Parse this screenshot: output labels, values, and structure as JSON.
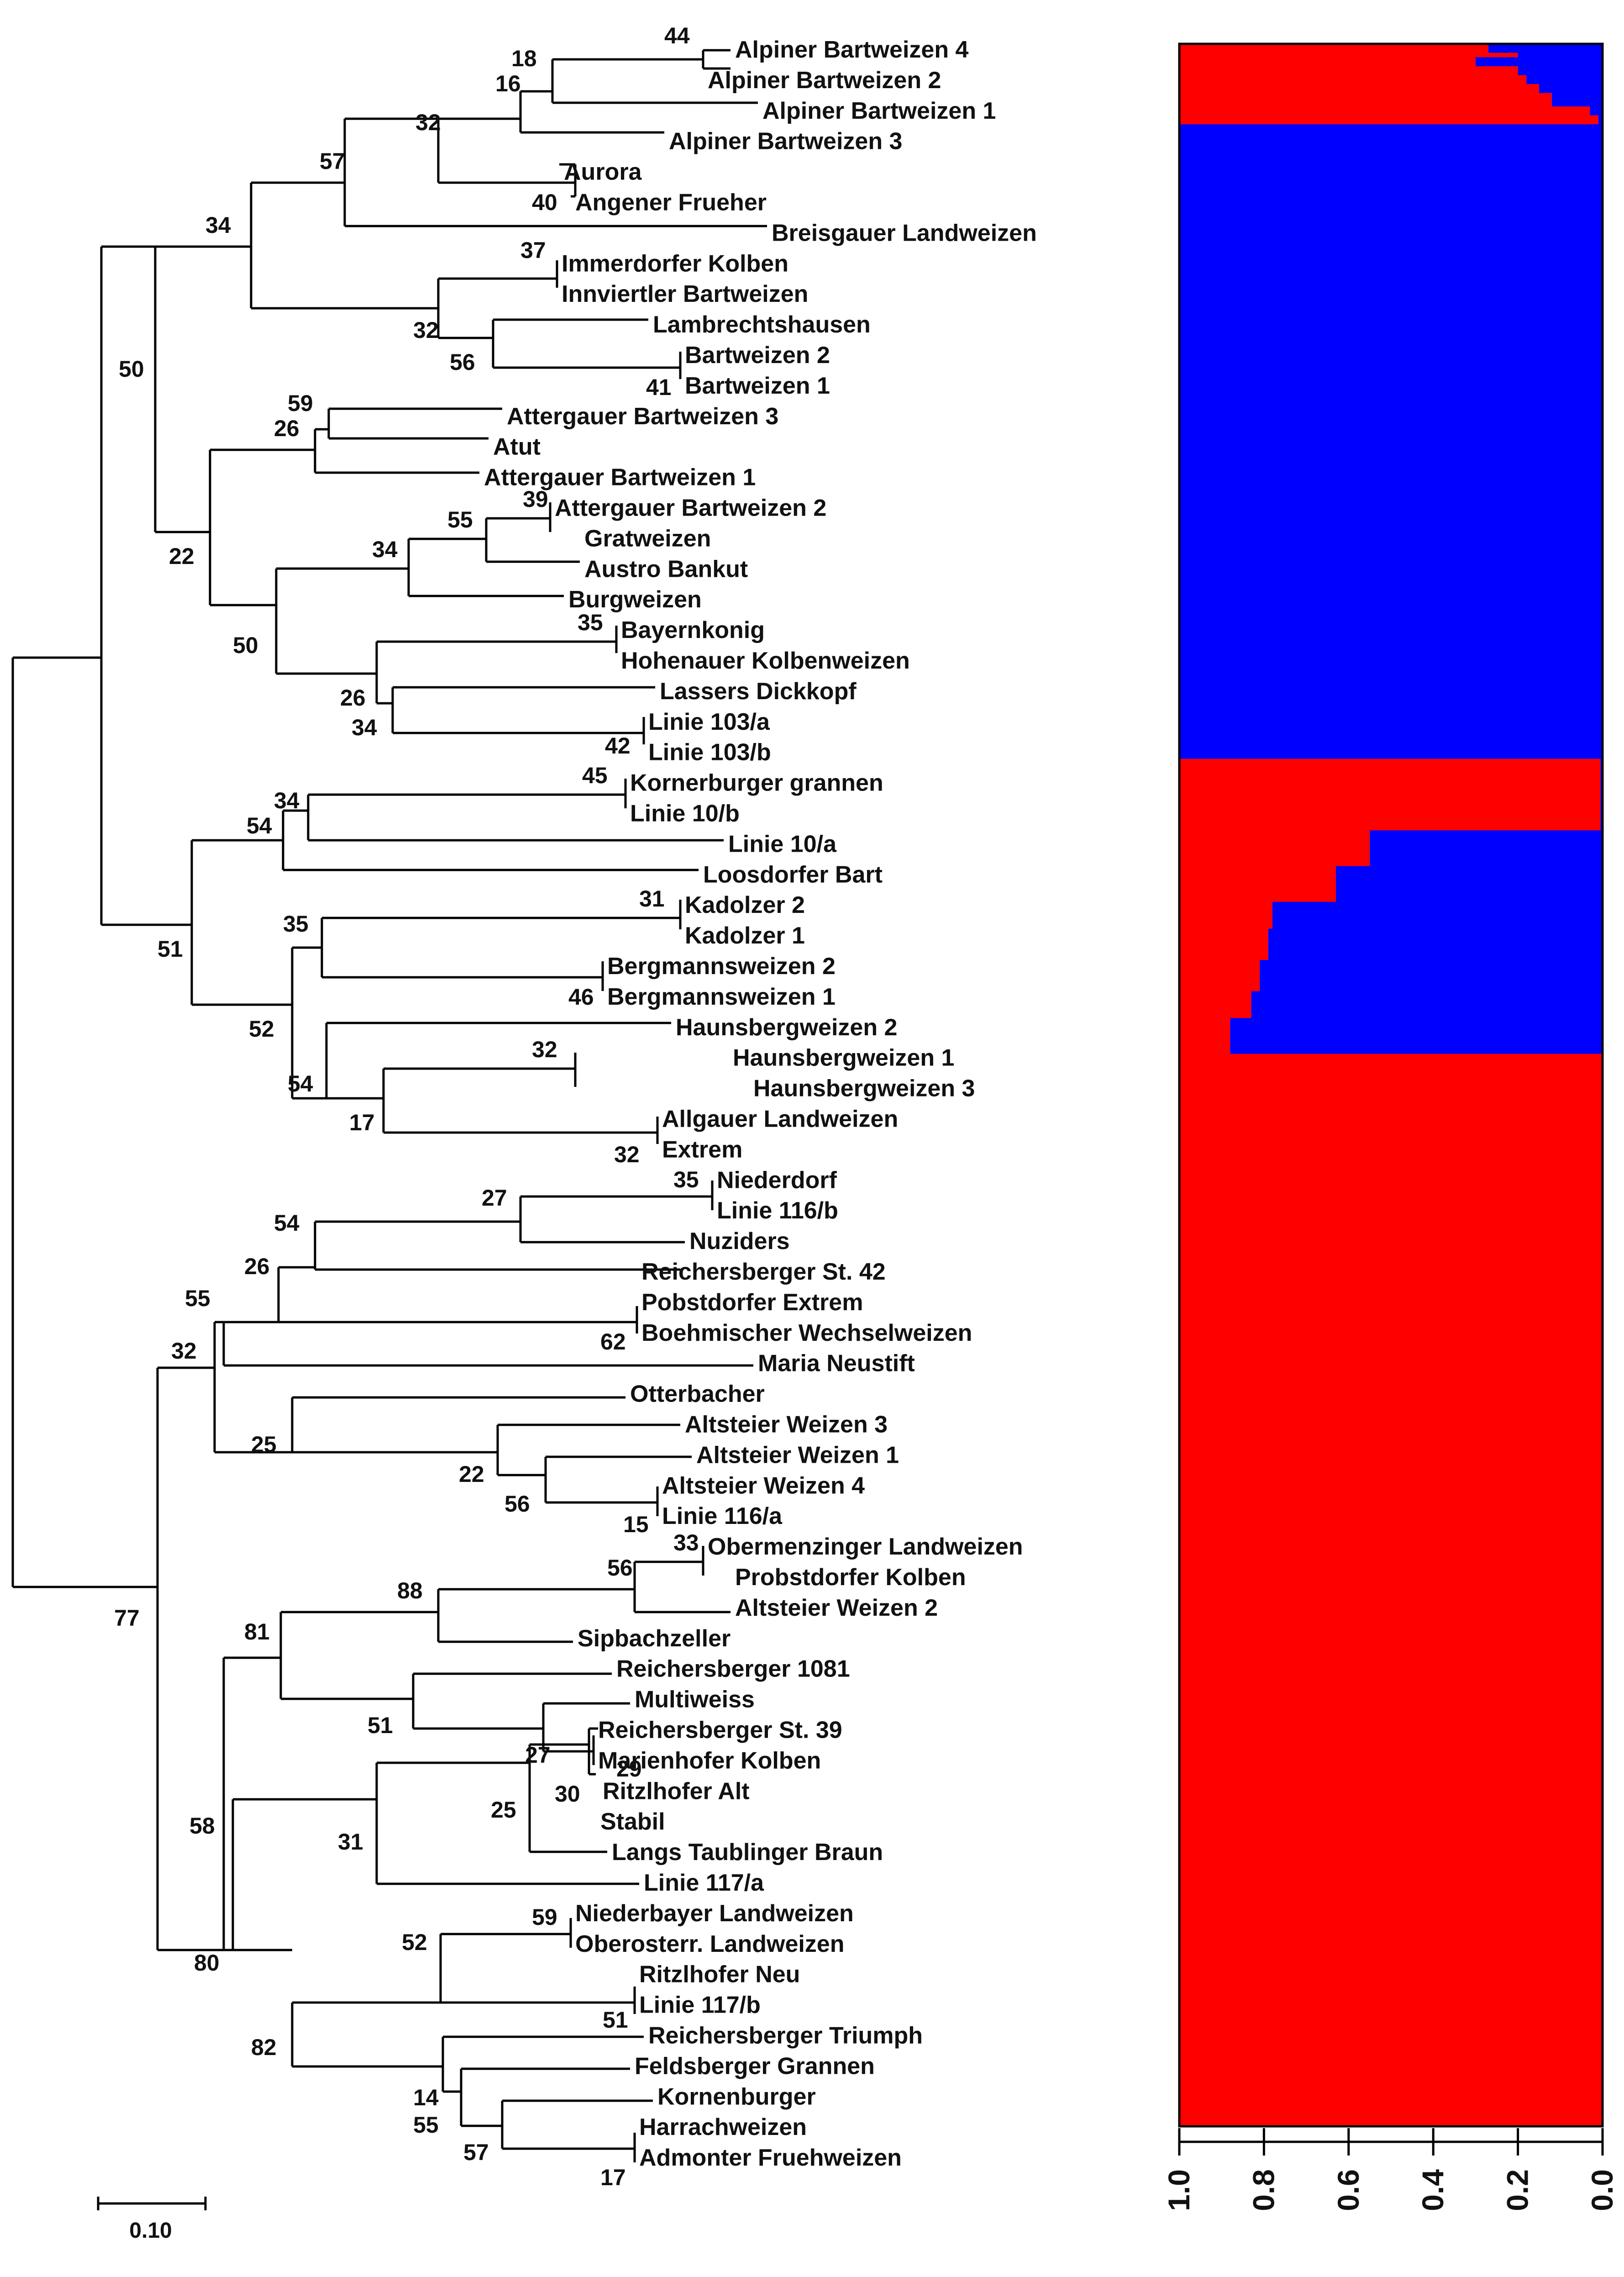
{
  "taxa": [
    "Alpiner Bartweizen 4",
    "Alpiner Bartweizen 2",
    "Alpiner Bartweizen 1",
    "Alpiner Bartweizen 3",
    "Aurora",
    "Angener Frueher",
    "Breisgauer Landweizen",
    "Immerdorfer Kolben",
    "Innviertler Bartweizen",
    "Lambrechtshausen",
    "Bartweizen 2",
    "Bartweizen 1",
    "Attergauer Bartweizen 3",
    "Atut",
    "Attergauer Bartweizen 1",
    "Attergauer Bartweizen 2",
    "Gratweizen",
    "Austro Bankut",
    "Burgweizen",
    "Bayernkonig",
    "Hohenauer Kolbenweizen",
    "Lassers Dickkopf",
    "Linie 103/a",
    "Linie 103/b",
    "Kornerburger grannen",
    "Linie 10/b",
    "Linie 10/a",
    "Loosdorfer Bart",
    "Kadolzer 2",
    "Kadolzer 1",
    "Bergmannsweizen 2",
    "Bergmannsweizen 1",
    "Haunsbergweizen 2",
    "Haunsbergweizen 1",
    "Haunsbergweizen 3",
    "Allgauer Landweizen",
    "Extrem",
    "Niederdorf",
    "Linie 116/b",
    "Nuziders",
    "Reichersberger St. 42",
    "Pobstdorfer Extrem",
    "Boehmischer Wechselweizen",
    "Maria Neustift",
    "Otterbacher",
    "Altsteier Weizen 3",
    "Altsteier Weizen 1",
    "Altsteier Weizen 4",
    "Linie 116/a",
    "Obermenzinger Landweizen",
    "Probstdorfer Kolben",
    "Altsteier Weizen 2",
    "Sipbachzeller",
    "Reichersberger 1081",
    "Multiweiss",
    "Reichersberger St. 39",
    "Marienhofer Kolben",
    "Ritzlhofer Alt",
    "Stabil",
    "Langs Taublinger Braun",
    "Linie 117/a",
    "Niederbayer Landweizen",
    "Oberosterr. Landweizen",
    "Ritzlhofer Neu",
    "Linie 117/b",
    "Reichersberger Triumph",
    "Feldsberger Grannen",
    "Kornenburger",
    "Harrachweizen",
    "Admonter Fruehweizen"
  ],
  "bootstrap_values": [
    "44",
    "18",
    "16",
    "32",
    "57",
    "40",
    "34",
    "37",
    "32",
    "56",
    "41",
    "50",
    "59",
    "26",
    "39",
    "55",
    "34",
    "22",
    "35",
    "50",
    "26",
    "34",
    "42",
    "45",
    "34",
    "54",
    "31",
    "35",
    "46",
    "51",
    "52",
    "32",
    "54",
    "17",
    "32",
    "35",
    "27",
    "54",
    "26",
    "55",
    "32",
    "62",
    "25",
    "22",
    "56",
    "15",
    "33",
    "56",
    "88",
    "81",
    "51",
    "27",
    "29",
    "30",
    "25",
    "31",
    "58",
    "59",
    "52",
    "80",
    "51",
    "82",
    "14",
    "55",
    "57",
    "17",
    "77"
  ],
  "scale_bar_label": "0.10",
  "structure_axis_ticks": [
    "1.0",
    "0.8",
    "0.6",
    "0.4",
    "0.2",
    "0.0"
  ],
  "structure_colors": {
    "cluster_a": "#ff0000",
    "cluster_b": "#0000ff"
  },
  "chart_data": {
    "type": "stacked-bar",
    "title": "",
    "orientation": "horizontal",
    "value_axis": {
      "label": "",
      "range": [
        0,
        1
      ],
      "ticks": [
        "1.0",
        "0.8",
        "0.6",
        "0.4",
        "0.2",
        "0.0"
      ],
      "direction": "reversed"
    },
    "series": [
      {
        "name": "cluster_red",
        "color": "#ff0000"
      },
      {
        "name": "cluster_blue",
        "color": "#0000ff"
      }
    ],
    "red_membership": [
      0.73,
      0.73,
      0.8,
      0.7,
      0.7,
      0.8,
      0.8,
      0.82,
      0.82,
      0.85,
      0.85,
      0.88,
      0.88,
      0.88,
      0.97,
      0.97,
      0.99,
      0.99,
      0,
      0,
      0,
      0,
      0,
      0,
      0,
      0,
      0,
      0,
      0,
      0,
      0,
      0,
      0,
      0,
      0,
      0,
      0,
      0,
      0,
      0,
      0,
      0,
      0,
      0,
      0,
      0,
      0,
      0,
      0,
      0,
      0,
      0,
      0,
      0,
      0,
      0,
      0,
      0,
      0,
      0,
      0,
      0,
      0,
      0,
      0,
      0,
      0,
      0,
      0,
      0,
      0,
      0,
      0,
      0,
      0,
      0,
      0,
      0,
      0,
      0,
      0,
      0,
      0,
      0,
      0,
      0,
      0,
      0,
      0,
      0,
      0,
      0,
      0,
      0,
      0,
      0,
      0,
      0,
      0,
      0,
      0,
      0,
      0,
      0,
      0,
      0,
      0,
      0,
      0,
      0,
      0,
      0,
      0,
      0,
      0,
      0,
      0,
      0,
      0,
      0,
      0,
      0,
      0,
      0,
      0,
      0,
      0,
      0,
      0,
      0,
      0,
      0,
      0,
      0,
      0,
      0,
      0,
      0,
      0,
      0,
      0,
      0,
      0,
      0,
      0,
      0,
      0,
      0,
      0,
      0,
      0,
      0,
      0,
      0,
      0,
      0,
      0,
      0,
      0,
      0,
      0.995,
      0.995,
      0.995,
      0.995,
      0.995,
      0.995,
      0.995,
      0.995,
      0.995,
      0.995,
      0.995,
      0.995,
      0.995,
      0.995,
      0.995,
      0.995,
      0.45,
      0.45,
      0.45,
      0.45,
      0.45,
      0.45,
      0.45,
      0.45,
      0.37,
      0.37,
      0.37,
      0.37,
      0.37,
      0.37,
      0.37,
      0.37,
      0.22,
      0.22,
      0.22,
      0.22,
      0.22,
      0.22,
      0.21,
      0.21,
      0.21,
      0.21,
      0.21,
      0.21,
      0.21,
      0.19,
      0.19,
      0.19,
      0.19,
      0.19,
      0.19,
      0.19,
      0.17,
      0.17,
      0.17,
      0.17,
      0.17,
      0.17,
      0.12,
      0.12,
      0.12,
      0.12,
      0.12,
      0.12,
      0.12,
      0.12,
      1,
      1,
      1,
      1,
      1,
      1,
      1,
      1,
      1,
      1,
      1,
      1,
      1,
      1,
      1,
      1,
      1,
      1,
      1,
      1,
      1,
      1,
      1,
      1,
      1,
      1,
      1,
      1,
      1,
      1,
      1,
      1,
      1,
      1,
      1,
      1,
      1,
      1,
      1,
      1,
      1,
      1,
      1,
      1,
      1,
      1,
      1,
      1,
      1,
      1,
      1,
      1,
      1,
      1,
      1,
      1,
      1,
      1,
      1,
      1,
      1,
      1,
      1,
      1,
      1,
      1,
      1,
      1,
      1,
      1,
      1,
      1,
      1,
      1,
      1,
      1,
      1,
      1,
      1,
      1,
      1,
      1,
      1,
      1,
      1,
      1,
      1,
      1,
      1,
      1,
      1,
      1,
      1,
      1,
      1,
      1,
      1,
      1,
      1,
      1,
      1,
      1,
      1,
      1,
      1,
      1,
      1,
      1,
      1,
      1,
      1,
      1,
      1,
      1,
      1,
      1,
      1,
      1,
      1,
      1,
      1,
      1,
      1,
      1,
      1,
      1,
      1,
      1,
      1,
      1,
      1,
      1,
      1,
      1,
      1,
      1,
      1,
      1,
      1,
      1,
      1,
      1,
      1,
      1,
      1,
      1,
      1,
      1,
      1,
      1,
      1,
      1,
      1,
      1,
      1,
      1,
      1,
      1,
      1,
      1,
      1,
      1,
      1,
      1,
      1,
      1,
      1,
      1,
      1,
      1,
      1,
      1,
      1,
      1,
      1,
      1,
      1,
      1,
      1,
      1,
      1,
      1,
      1,
      1,
      1,
      1,
      1,
      1,
      1,
      1,
      1,
      1,
      1,
      1,
      1,
      1,
      1,
      1,
      1,
      1,
      1,
      1,
      1,
      1,
      1,
      1,
      1,
      1,
      1,
      1,
      1,
      1,
      1,
      1,
      1,
      1,
      1,
      1,
      1,
      1,
      1,
      1,
      1,
      1,
      1,
      1,
      1,
      1,
      1,
      1,
      1,
      1,
      1,
      1,
      1,
      1,
      1,
      1,
      1,
      1
    ]
  }
}
